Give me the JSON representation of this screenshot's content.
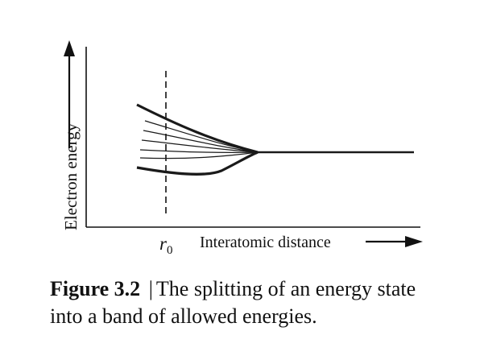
{
  "chart_data": {
    "type": "line",
    "title": "",
    "ylabel": "Electron energy",
    "xlabel": "Interatomic distance",
    "x_marker_label": "r",
    "x_marker_subscript": "0",
    "grid": false,
    "legend": "none"
  },
  "caption": {
    "label": "Figure 3.2",
    "separator": "|",
    "text": "The splitting of an energy state into a band of allowed energies."
  }
}
